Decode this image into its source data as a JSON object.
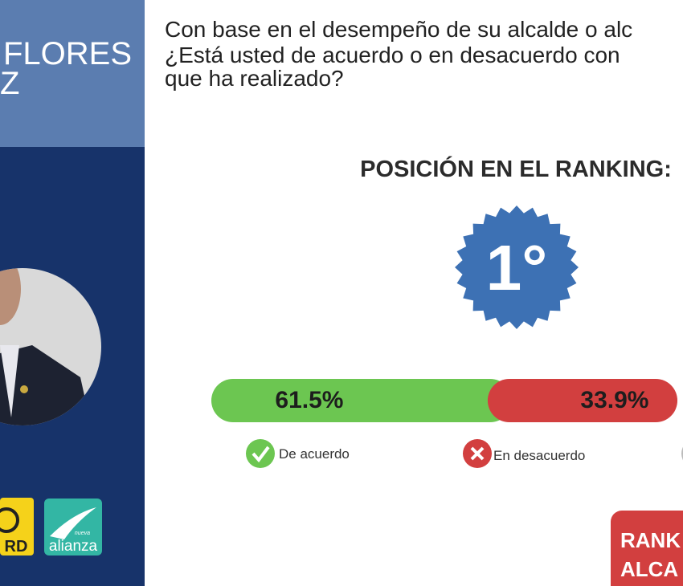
{
  "candidate": {
    "name_lines": [
      "FLORES",
      "Z"
    ]
  },
  "question": [
    "Con base en el desempeño de su alcalde o alc",
    "¿Está usted de acuerdo o en desacuerdo con",
    "que ha realizado?"
  ],
  "ranking": {
    "title": "POSICIÓN EN EL RANKING:",
    "position": "1°"
  },
  "chart_data": {
    "type": "stacked-bar",
    "series": [
      {
        "name": "De acuerdo",
        "color": "#6cc651",
        "values": [
          61.5
        ],
        "value_labels": [
          "61.5%"
        ]
      },
      {
        "name": "En desacuerdo",
        "color": "#d23f3f",
        "values": [
          33.9
        ],
        "value_labels": [
          "33.9%"
        ]
      }
    ]
  },
  "logos": {
    "prd": "RD",
    "alianza_small": "nueva",
    "alianza": "alianza"
  },
  "button": [
    "RANK",
    "ALCA"
  ]
}
